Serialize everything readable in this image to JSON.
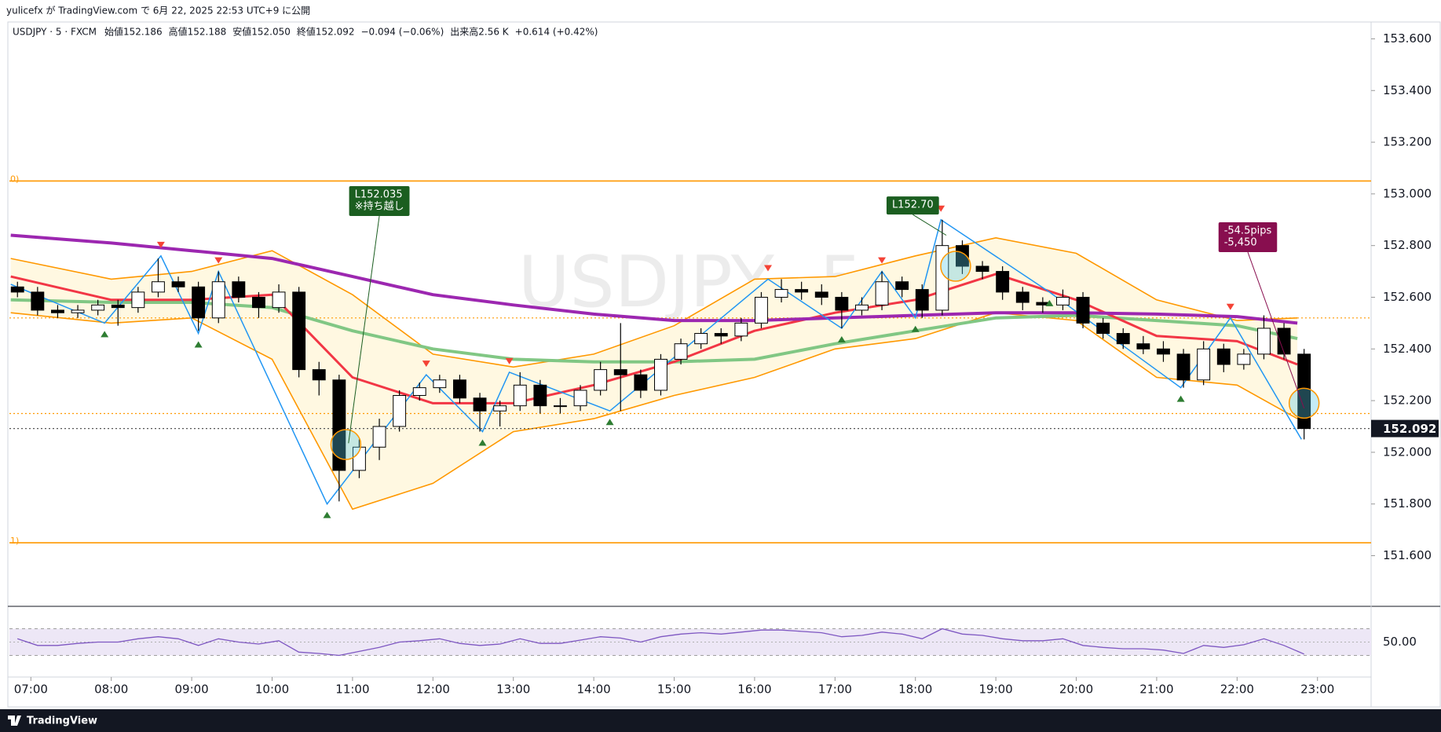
{
  "header": {
    "publish": "yulicefx が TradingView.com で 6月 22, 2025 22:53 UTC+9 に公開"
  },
  "legend": {
    "symbol": "USDJPY · 5 · FXCM",
    "items": [
      "始値152.186",
      "高値152.188",
      "安値152.050",
      "終値152.092",
      "−0.094 (−0.06%)",
      "出来高2.56 K",
      "+0.614 (+0.42%)"
    ]
  },
  "footer": {
    "brand": "TradingView"
  },
  "chart_data": {
    "type": "candlestick",
    "watermark": "USDJPY, 5",
    "x": [
      "06:45",
      "07:00",
      "07:15",
      "07:30",
      "07:45",
      "08:00",
      "08:15",
      "08:30",
      "08:45",
      "09:00",
      "09:15",
      "09:30",
      "09:45",
      "10:00",
      "10:15",
      "10:30",
      "10:45",
      "11:00",
      "11:15",
      "11:30",
      "11:45",
      "12:00",
      "12:15",
      "12:30",
      "12:45",
      "13:00",
      "13:15",
      "13:30",
      "13:45",
      "14:00",
      "14:15",
      "14:30",
      "14:45",
      "15:00",
      "15:15",
      "15:30",
      "15:45",
      "16:00",
      "16:15",
      "16:30",
      "16:45",
      "17:00",
      "17:15",
      "17:30",
      "17:45",
      "18:00",
      "18:15",
      "18:30",
      "18:45",
      "19:00",
      "19:15",
      "19:30",
      "19:45",
      "20:00",
      "20:15",
      "20:30",
      "20:45",
      "21:00",
      "21:15",
      "21:30",
      "21:45",
      "22:00",
      "22:15",
      "22:30",
      "22:45"
    ],
    "open": [
      152.64,
      152.62,
      152.55,
      152.54,
      152.55,
      152.57,
      152.56,
      152.62,
      152.66,
      152.64,
      152.52,
      152.66,
      152.6,
      152.56,
      152.62,
      152.32,
      152.28,
      151.93,
      152.02,
      152.1,
      152.22,
      152.25,
      152.28,
      152.21,
      152.16,
      152.18,
      152.26,
      152.18,
      152.18,
      152.24,
      152.32,
      152.3,
      152.24,
      152.36,
      152.42,
      152.46,
      152.45,
      152.5,
      152.6,
      152.63,
      152.62,
      152.6,
      152.55,
      152.57,
      152.66,
      152.63,
      152.55,
      152.8,
      152.72,
      152.7,
      152.62,
      152.58,
      152.57,
      152.6,
      152.5,
      152.46,
      152.42,
      152.4,
      152.38,
      152.28,
      152.4,
      152.34,
      152.38,
      152.48,
      152.38
    ],
    "high": [
      152.66,
      152.64,
      152.57,
      152.57,
      152.59,
      152.59,
      152.64,
      152.75,
      152.68,
      152.66,
      152.7,
      152.68,
      152.62,
      152.65,
      152.64,
      152.35,
      152.3,
      152.05,
      152.13,
      152.24,
      152.27,
      152.3,
      152.3,
      152.23,
      152.2,
      152.31,
      152.28,
      152.21,
      152.26,
      152.35,
      152.5,
      152.32,
      152.38,
      152.44,
      152.48,
      152.48,
      152.52,
      152.62,
      152.67,
      152.66,
      152.65,
      152.62,
      152.6,
      152.7,
      152.68,
      152.65,
      152.9,
      152.82,
      152.74,
      152.72,
      152.64,
      152.6,
      152.63,
      152.62,
      152.52,
      152.48,
      152.45,
      152.43,
      152.4,
      152.43,
      152.42,
      152.4,
      152.53,
      152.5,
      152.4
    ],
    "low": [
      152.6,
      152.53,
      152.52,
      152.52,
      152.53,
      152.49,
      152.54,
      152.6,
      152.62,
      152.47,
      152.5,
      152.58,
      152.52,
      152.54,
      152.29,
      152.22,
      151.81,
      151.9,
      151.97,
      152.08,
      152.2,
      152.23,
      152.19,
      152.08,
      152.1,
      152.16,
      152.15,
      152.15,
      152.16,
      152.22,
      152.16,
      152.21,
      152.22,
      152.34,
      152.4,
      152.42,
      152.43,
      152.48,
      152.58,
      152.59,
      152.57,
      152.48,
      152.53,
      152.55,
      152.6,
      152.52,
      152.53,
      152.69,
      152.67,
      152.59,
      152.55,
      152.54,
      152.55,
      152.48,
      152.44,
      152.4,
      152.38,
      152.35,
      152.25,
      152.26,
      152.31,
      152.32,
      152.36,
      152.36,
      152.05
    ],
    "close": [
      152.62,
      152.55,
      152.54,
      152.55,
      152.57,
      152.56,
      152.62,
      152.66,
      152.64,
      152.52,
      152.66,
      152.6,
      152.56,
      152.62,
      152.32,
      152.28,
      151.93,
      152.02,
      152.1,
      152.22,
      152.25,
      152.28,
      152.21,
      152.16,
      152.18,
      152.26,
      152.18,
      152.18,
      152.24,
      152.32,
      152.3,
      152.24,
      152.36,
      152.42,
      152.46,
      152.45,
      152.5,
      152.6,
      152.63,
      152.62,
      152.6,
      152.55,
      152.57,
      152.66,
      152.63,
      152.55,
      152.8,
      152.72,
      152.7,
      152.62,
      152.58,
      152.57,
      152.6,
      152.5,
      152.46,
      152.42,
      152.4,
      152.38,
      152.28,
      152.4,
      152.34,
      152.38,
      152.48,
      152.38,
      152.092
    ],
    "up_color": "#ffffff",
    "down_color": "#000000",
    "outline_color": "#000000",
    "xlim": [
      "06:44",
      "23:40"
    ],
    "xticks": [
      "07:00",
      "08:00",
      "09:00",
      "10:00",
      "11:00",
      "12:00",
      "13:00",
      "14:00",
      "15:00",
      "16:00",
      "17:00",
      "18:00",
      "19:00",
      "20:00",
      "21:00",
      "22:00",
      "23:00"
    ],
    "ylim": [
      151.41,
      153.65
    ],
    "yticks": [
      {
        "value": 151.6,
        "label": "151.600"
      },
      {
        "value": 151.8,
        "label": "151.800"
      },
      {
        "value": 152.0,
        "label": "152.000"
      },
      {
        "value": 152.2,
        "label": "152.200"
      },
      {
        "value": 152.4,
        "label": "152.400"
      },
      {
        "value": 152.6,
        "label": "152.600"
      },
      {
        "value": 152.8,
        "label": "152.800"
      },
      {
        "value": 153.0,
        "label": "153.000"
      },
      {
        "value": 153.2,
        "label": "153.200"
      },
      {
        "value": 153.4,
        "label": "153.400"
      },
      {
        "value": 153.6,
        "label": "153.600"
      }
    ],
    "overlay_x": [
      "06:45",
      "08:00",
      "09:00",
      "10:00",
      "11:00",
      "12:00",
      "13:00",
      "14:00",
      "15:00",
      "16:00",
      "17:00",
      "18:00",
      "19:00",
      "20:00",
      "21:00",
      "22:00",
      "22:45"
    ],
    "bollinger": {
      "color": "#ff9800",
      "fill": "#fff8e1",
      "upper": [
        152.75,
        152.67,
        152.7,
        152.78,
        152.61,
        152.38,
        152.33,
        152.38,
        152.49,
        152.67,
        152.68,
        152.76,
        152.83,
        152.77,
        152.59,
        152.51,
        152.52
      ],
      "lower": [
        152.54,
        152.5,
        152.52,
        152.36,
        151.78,
        151.88,
        152.08,
        152.13,
        152.22,
        152.29,
        152.4,
        152.44,
        152.54,
        152.51,
        152.29,
        152.26,
        152.13
      ]
    },
    "overlays": [
      {
        "color": "#81c784",
        "width": 4,
        "values": [
          152.59,
          152.58,
          152.58,
          152.56,
          152.47,
          152.4,
          152.36,
          152.35,
          152.35,
          152.36,
          152.42,
          152.47,
          152.52,
          152.53,
          152.51,
          152.49,
          152.44
        ]
      },
      {
        "color": "#f23645",
        "width": 3,
        "values": [
          152.68,
          152.59,
          152.59,
          152.61,
          152.29,
          152.19,
          152.19,
          152.26,
          152.35,
          152.47,
          152.54,
          152.59,
          152.69,
          152.59,
          152.45,
          152.43,
          152.34
        ]
      },
      {
        "color": "#9c27b0",
        "width": 4,
        "values": [
          152.84,
          152.81,
          152.78,
          152.75,
          152.68,
          152.61,
          152.57,
          152.535,
          152.51,
          152.51,
          152.52,
          152.53,
          152.54,
          152.54,
          152.535,
          152.525,
          152.5
        ]
      }
    ],
    "zigzag": {
      "color": "#2196f3",
      "high_color": "#f44336",
      "low_color": "#2e7d32",
      "x": [
        "06:45",
        "07:55",
        "08:37",
        "09:05",
        "09:20",
        "10:41",
        "11:55",
        "12:37",
        "12:57",
        "14:12",
        "16:10",
        "17:05",
        "17:35",
        "18:00",
        "18:19",
        "19:40",
        "21:18",
        "21:55",
        "22:48"
      ],
      "y": [
        152.65,
        152.5,
        152.76,
        152.46,
        152.7,
        151.8,
        152.3,
        152.08,
        152.31,
        152.16,
        152.67,
        152.48,
        152.7,
        152.52,
        152.9,
        152.62,
        152.25,
        152.52,
        152.05
      ]
    },
    "levels": [
      {
        "value": 153.05,
        "color": "#ff9800",
        "style": "solid",
        "label": "0)"
      },
      {
        "value": 151.65,
        "color": "#ff9800",
        "style": "solid",
        "label": "1)"
      },
      {
        "value": 152.52,
        "color": "#ff9800",
        "style": "dotted"
      },
      {
        "value": 152.15,
        "color": "#ff9800",
        "style": "dotted"
      },
      {
        "value": 152.092,
        "color": "#555555",
        "style": "dotted"
      }
    ],
    "highlights": [
      {
        "x": "10:55",
        "y": 152.03
      },
      {
        "x": "18:30",
        "y": 152.72
      },
      {
        "x": "22:50",
        "y": 152.19
      }
    ],
    "annotations": [
      {
        "lines": [
          "L152.035",
          "※持ち越し"
        ],
        "color": "#1b5e20",
        "x": "11:20",
        "y": 153.03,
        "target_x": "10:57",
        "target_y": 152.035
      },
      {
        "lines": [
          "L152.70"
        ],
        "color": "#1b5e20",
        "x": "17:58",
        "y": 152.99,
        "target_x": "18:23",
        "target_y": 152.84
      },
      {
        "lines": [
          "-54.5pips",
          "-5,450"
        ],
        "color": "#880e4f",
        "x": "22:08",
        "y": 152.89,
        "target_x": "22:50",
        "target_y": 152.17
      }
    ],
    "rsi": {
      "color": "#7e57c2",
      "band_fill": "#ede7f6",
      "bands": [
        30,
        70
      ],
      "ylim": [
        0,
        100
      ],
      "yticks": [
        {
          "value": 50,
          "label": "50.00"
        }
      ],
      "values": [
        55,
        45,
        45,
        48,
        50,
        50,
        55,
        58,
        55,
        45,
        55,
        50,
        47,
        52,
        35,
        33,
        30,
        36,
        42,
        50,
        52,
        55,
        48,
        45,
        47,
        55,
        48,
        48,
        53,
        58,
        56,
        50,
        58,
        62,
        64,
        62,
        65,
        68,
        68,
        66,
        64,
        58,
        60,
        65,
        62,
        55,
        70,
        62,
        60,
        55,
        52,
        52,
        55,
        45,
        42,
        40,
        40,
        38,
        33,
        45,
        42,
        46,
        55,
        45,
        32
      ]
    }
  }
}
